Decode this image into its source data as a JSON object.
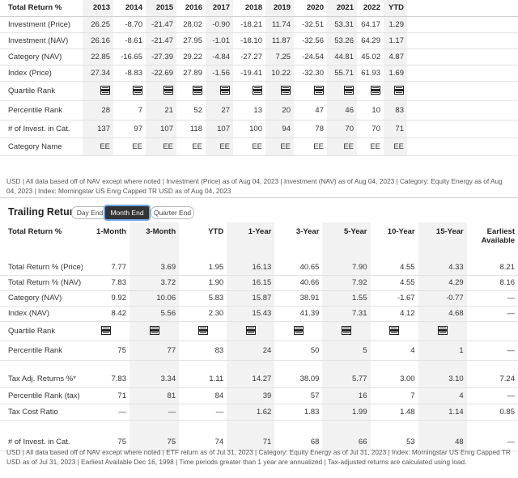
{
  "annual": {
    "headers": [
      "Total Return %",
      "2013",
      "2014",
      "2015",
      "2016",
      "2017",
      "2018",
      "2019",
      "2020",
      "2021",
      "2022",
      "YTD"
    ],
    "rows": [
      {
        "label": "Investment (Price)",
        "values": [
          "26.25",
          "-8.70",
          "-21.47",
          "28.02",
          "-0.90",
          "-18.21",
          "11.74",
          "-32.51",
          "53.31",
          "64.17",
          "1.29"
        ]
      },
      {
        "label": "Investment (NAV)",
        "values": [
          "26.16",
          "-8.61",
          "-21.47",
          "27.95",
          "-1.01",
          "-18.10",
          "11.87",
          "-32.56",
          "53.26",
          "64.29",
          "1.17"
        ]
      },
      {
        "label": "Category (NAV)",
        "values": [
          "22.85",
          "-16.65",
          "-27.39",
          "29.22",
          "-4.84",
          "-27.27",
          "7.25",
          "-24.54",
          "44.81",
          "45.02",
          "4.87"
        ]
      },
      {
        "label": "Index (Price)",
        "values": [
          "27.34",
          "-8.83",
          "-22.69",
          "27.89",
          "-1.56",
          "-19.41",
          "10.22",
          "-32.30",
          "55.71",
          "61.93",
          "1.69"
        ]
      }
    ],
    "quartile_label": "Quartile Rank",
    "quartile_icons": [
      "quartile-rank-icon",
      "quartile-rank-icon",
      "quartile-rank-icon",
      "quartile-rank-icon",
      "quartile-rank-icon",
      "quartile-rank-icon",
      "quartile-rank-icon",
      "quartile-rank-icon",
      "quartile-rank-icon",
      "quartile-rank-icon",
      "quartile-rank-icon"
    ],
    "percentile": {
      "label": "Percentile Rank",
      "values": [
        "28",
        "7",
        "21",
        "52",
        "27",
        "13",
        "20",
        "47",
        "46",
        "10",
        "83"
      ]
    },
    "count": {
      "label": "# of Invest. in Cat.",
      "values": [
        "137",
        "97",
        "107",
        "118",
        "107",
        "100",
        "94",
        "78",
        "70",
        "70",
        "71"
      ]
    },
    "category_name": {
      "label": "Category Name",
      "values": [
        "EE",
        "EE",
        "EE",
        "EE",
        "EE",
        "EE",
        "EE",
        "EE",
        "EE",
        "EE",
        "EE"
      ]
    },
    "note": "USD | All data based off of NAV except where noted | Investment (Price) as of Aug 04, 2023 | Investment (NAV) as of Aug 04, 2023 | Category: Equity Energy as of Aug 04, 2023 | Index: Morningstar US Enrg Capped TR USD as of Aug 04, 2023"
  },
  "trailing": {
    "title": "Trailing Returns",
    "tabs": [
      "Day End",
      "Month End",
      "Quarter End"
    ],
    "active_tab": "Month End",
    "headers": [
      "Total Return %",
      "1-Month",
      "3-Month",
      "YTD",
      "1-Year",
      "3-Year",
      "5-Year",
      "10-Year",
      "15-Year",
      "Earliest Available"
    ],
    "rows_a": [
      {
        "label": "Total Return % (Price)",
        "values": [
          "7.77",
          "3.69",
          "1.95",
          "16.13",
          "40.65",
          "7.90",
          "4.55",
          "4.33",
          "8.21"
        ]
      },
      {
        "label": "Total Return % (NAV)",
        "values": [
          "7.83",
          "3.72",
          "1.90",
          "16.15",
          "40.66",
          "7.92",
          "4.55",
          "4.29",
          "8.16"
        ]
      },
      {
        "label": "Category (NAV)",
        "values": [
          "9.92",
          "10.06",
          "5.83",
          "15.87",
          "38.91",
          "1.55",
          "-1.67",
          "-0.77",
          "—"
        ]
      },
      {
        "label": "Index (NAV)",
        "values": [
          "8.42",
          "5.56",
          "2.30",
          "15.43",
          "41.39",
          "7.31",
          "4.12",
          "4.68",
          "—"
        ]
      }
    ],
    "quartile_label": "Quartile Rank",
    "percentile": {
      "label": "Percentile Rank",
      "values": [
        "75",
        "77",
        "83",
        "24",
        "50",
        "5",
        "4",
        "1",
        "—"
      ]
    },
    "rows_b": [
      {
        "label": "Tax Adj. Returns %*",
        "values": [
          "7.83",
          "3.34",
          "1.11",
          "14.27",
          "38.09",
          "5.77",
          "3.00",
          "3.10",
          "7.24"
        ]
      },
      {
        "label": "Percentile Rank (tax)",
        "values": [
          "71",
          "81",
          "84",
          "39",
          "57",
          "16",
          "7",
          "4",
          "—"
        ]
      },
      {
        "label": "Tax Cost Ratio",
        "values": [
          "—",
          "—",
          "—",
          "1.62",
          "1.83",
          "1.99",
          "1.48",
          "1.14",
          "0.85"
        ]
      }
    ],
    "count": {
      "label": "# of Invest. in Cat.",
      "values": [
        "75",
        "75",
        "74",
        "71",
        "68",
        "66",
        "53",
        "48",
        "—"
      ]
    },
    "note": "USD | All data based off of NAV except where noted | ETF return as of Jul 31, 2023 | Category: Equity Energy as of Jul 31, 2023 | Index: Morningstar US Enrg Capped TR USD as of Jul 31, 2023 | Earliest Available Dec 16, 1998 | Time periods greater than 1 year are annualized | Tax-adjusted returns are calculated using load."
  }
}
